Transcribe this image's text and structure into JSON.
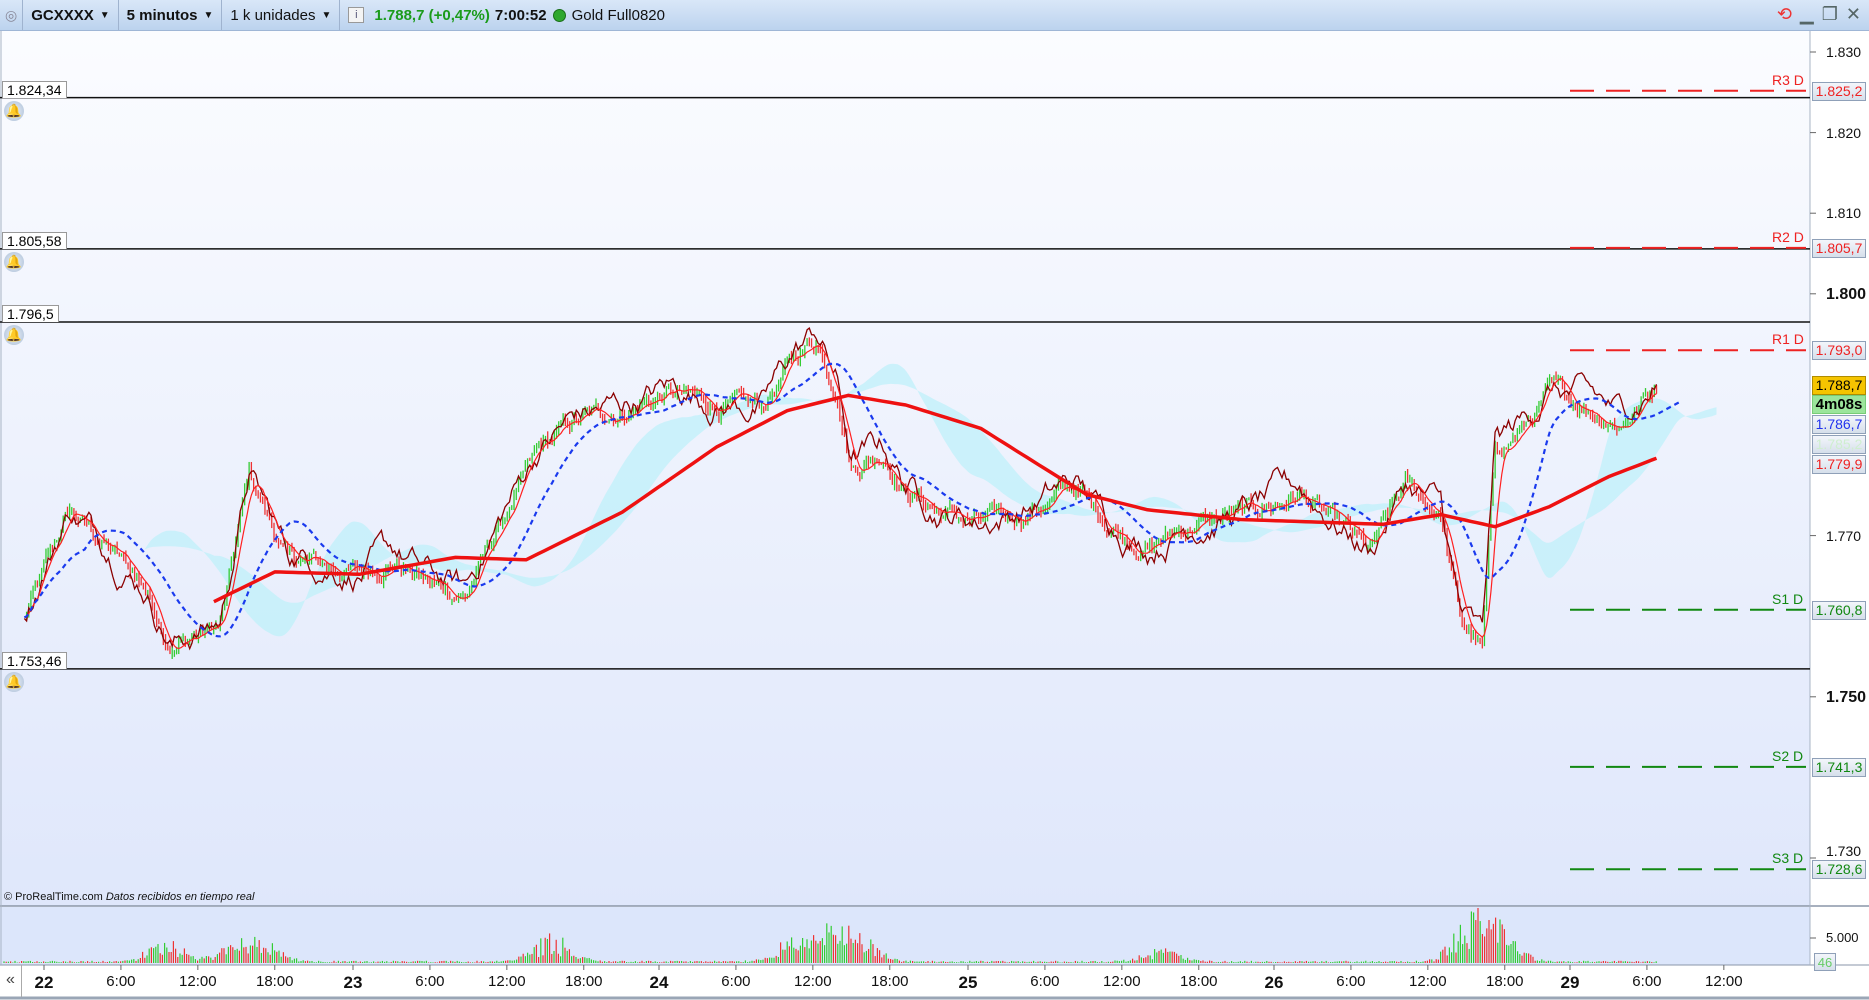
{
  "header": {
    "symbol": "GCXXXX",
    "timeframe": "5 minutos",
    "units": "1 k unidades",
    "last_price": "1.788,7 (+0,47%)",
    "time": "7:00:52",
    "instrument": "Gold Full0820"
  },
  "icons": [
    "logo-icon",
    "chevron-down-icon",
    "info-icon",
    "status-dot-icon",
    "refresh-icon",
    "minimize-icon",
    "restore-icon",
    "close-icon",
    "bell-icon",
    "scroll-left-icon"
  ],
  "colors": {
    "up": "#33cc33",
    "down": "#ee3333",
    "price_line": "#8b0000",
    "ma_long": "#ee1111",
    "ma_short": "#1a3aee",
    "cloud": "#bff0fa",
    "pivot_r": "#ee2222",
    "pivot_s": "#118811",
    "last_price_bg": "#f5c400",
    "timer_bg": "#9be59b"
  },
  "levels": [
    {
      "value": 1824.34,
      "label": "1.824,34"
    },
    {
      "value": 1805.58,
      "label": "1.805,58"
    },
    {
      "value": 1796.5,
      "label": "1.796,5"
    },
    {
      "value": 1753.46,
      "label": "1.753,46"
    }
  ],
  "pivots": [
    {
      "name": "R3 D",
      "value": 1825.2,
      "label": "1.825,2",
      "type": "r"
    },
    {
      "name": "R2 D",
      "value": 1805.7,
      "label": "1.805,7",
      "type": "r"
    },
    {
      "name": "R1 D",
      "value": 1793.0,
      "label": "1.793,0",
      "type": "r"
    },
    {
      "name": "S1 D",
      "value": 1760.8,
      "label": "1.760,8",
      "type": "s"
    },
    {
      "name": "S2 D",
      "value": 1741.3,
      "label": "1.741,3",
      "type": "s"
    },
    {
      "name": "S3 D",
      "value": 1728.6,
      "label": "1.728,6",
      "type": "s"
    }
  ],
  "axis_labels": {
    "last": {
      "value": 1788.7,
      "label": "1.788,7"
    },
    "timer": "4m08s",
    "ma_short": {
      "value": 1786.7,
      "label": "1.786,7"
    },
    "cloud": {
      "value": 1785.2,
      "label": "1.785,2"
    },
    "ma_long": {
      "value": 1779.9,
      "label": "1.779,9"
    }
  },
  "credit": {
    "site": "© ProRealTime.com",
    "note": "Datos recibidos en tiempo real"
  },
  "chart_data": {
    "type": "line",
    "y_ticks": [
      {
        "v": 1830,
        "l": "1.830"
      },
      {
        "v": 1820,
        "l": "1.820"
      },
      {
        "v": 1810,
        "l": "1.810"
      },
      {
        "v": 1800,
        "l": "1.800",
        "bold": true
      },
      {
        "v": 1770,
        "l": "1.770"
      },
      {
        "v": 1750,
        "l": "1.750",
        "bold": true
      },
      {
        "v": 1730,
        "l": "1.730"
      }
    ],
    "x_ticks": [
      {
        "t": "22 00:00",
        "l": "22",
        "day": true
      },
      {
        "t": "22 06:00",
        "l": "6:00"
      },
      {
        "t": "22 12:00",
        "l": "12:00"
      },
      {
        "t": "22 18:00",
        "l": "18:00"
      },
      {
        "t": "23 00:00",
        "l": "23",
        "day": true
      },
      {
        "t": "23 06:00",
        "l": "6:00"
      },
      {
        "t": "23 12:00",
        "l": "12:00"
      },
      {
        "t": "23 18:00",
        "l": "18:00"
      },
      {
        "t": "24 00:00",
        "l": "24",
        "day": true
      },
      {
        "t": "24 06:00",
        "l": "6:00"
      },
      {
        "t": "24 12:00",
        "l": "12:00"
      },
      {
        "t": "24 18:00",
        "l": "18:00"
      },
      {
        "t": "25 00:00",
        "l": "25",
        "day": true
      },
      {
        "t": "25 06:00",
        "l": "6:00"
      },
      {
        "t": "25 12:00",
        "l": "12:00"
      },
      {
        "t": "25 18:00",
        "l": "18:00"
      },
      {
        "t": "26 00:00",
        "l": "26",
        "day": true
      },
      {
        "t": "26 06:00",
        "l": "6:00"
      },
      {
        "t": "26 12:00",
        "l": "12:00"
      },
      {
        "t": "26 18:00",
        "l": "18:00"
      },
      {
        "t": "29 00:00",
        "l": "29",
        "day": true
      },
      {
        "t": "29 06:00",
        "l": "6:00"
      },
      {
        "t": "29 12:00",
        "l": "12:00"
      }
    ],
    "price": [
      [
        "21 22:30",
        1759.6
      ],
      [
        "22 02:00",
        1772.9
      ],
      [
        "22 04:00",
        1770
      ],
      [
        "22 07:45",
        1764
      ],
      [
        "22 10:00",
        1756.6
      ],
      [
        "22 13:45",
        1758.8
      ],
      [
        "22 16:00",
        1777.3
      ],
      [
        "22 19:00",
        1767
      ],
      [
        "23 00:30",
        1765.5
      ],
      [
        "23 03:15",
        1767
      ],
      [
        "23 06:00",
        1764
      ],
      [
        "23 08:45",
        1762.5
      ],
      [
        "23 11:30",
        1771.4
      ],
      [
        "23 14:30",
        1780.3
      ],
      [
        "23 17:15",
        1784
      ],
      [
        "23 21:00",
        1785.5
      ],
      [
        "24 00:45",
        1787.7
      ],
      [
        "24 04:30",
        1786.2
      ],
      [
        "24 08:00",
        1785.5
      ],
      [
        "24 10:30",
        1792
      ],
      [
        "24 12:15",
        1794.4
      ],
      [
        "24 13:45",
        1789.2
      ],
      [
        "24 15:00",
        1778.8
      ],
      [
        "24 17:30",
        1780.3
      ],
      [
        "24 19:15",
        1775.9
      ],
      [
        "24 22:00",
        1772.9
      ],
      [
        "25 01:00",
        1771.4
      ],
      [
        "25 04:30",
        1772.9
      ],
      [
        "25 08:15",
        1775.9
      ],
      [
        "25 11:00",
        1771.4
      ],
      [
        "25 14:00",
        1768.5
      ],
      [
        "25 17:30",
        1771.4
      ],
      [
        "25 22:15",
        1772.9
      ],
      [
        "26 02:00",
        1775.1
      ],
      [
        "26 04:45",
        1771.4
      ],
      [
        "26 07:30",
        1767.7
      ],
      [
        "26 10:15",
        1775.9
      ],
      [
        "26 13:00",
        1772.9
      ],
      [
        "26 14:30",
        1759.6
      ],
      [
        "26 16:15",
        1755.9
      ],
      [
        "26 17:15",
        1780.3
      ],
      [
        "26 19:30",
        1783.3
      ],
      [
        "26 21:30",
        1787.7
      ],
      [
        "29 01:15",
        1786.2
      ],
      [
        "29 04:00",
        1784
      ],
      [
        "29 06:45",
        1788.7
      ]
    ],
    "ma_long": [
      [
        "22 13:15",
        1761.8
      ],
      [
        "22 18:00",
        1765.5
      ],
      [
        "23 00:30",
        1765.2
      ],
      [
        "23 08:00",
        1767.3
      ],
      [
        "23 13:30",
        1767
      ],
      [
        "23 21:00",
        1772.9
      ],
      [
        "24 04:30",
        1781
      ],
      [
        "24 10:00",
        1785.5
      ],
      [
        "24 14:45",
        1787.4
      ],
      [
        "24 19:15",
        1786.2
      ],
      [
        "25 01:00",
        1783.3
      ],
      [
        "25 05:30",
        1778.8
      ],
      [
        "25 09:15",
        1775.1
      ],
      [
        "25 14:00",
        1773.2
      ],
      [
        "25 21:15",
        1772
      ],
      [
        "26 08:30",
        1771.4
      ],
      [
        "26 13:00",
        1772.6
      ],
      [
        "26 17:15",
        1771.1
      ],
      [
        "26 21:30",
        1773.6
      ],
      [
        "29 03:00",
        1777.3
      ],
      [
        "29 06:45",
        1779.6
      ]
    ],
    "volume_peaks": [
      [
        "22 09:30",
        4500
      ],
      [
        "22 15:00",
        3500
      ],
      [
        "22 17:00",
        4000
      ],
      [
        "23 15:30",
        6000
      ],
      [
        "24 10:30",
        5000
      ],
      [
        "24 13:30",
        8000
      ],
      [
        "24 16:00",
        4000
      ],
      [
        "25 15:00",
        3000
      ],
      [
        "26 15:30",
        10000
      ],
      [
        "26 17:30",
        7500
      ]
    ],
    "volume_axis": {
      "tick": 5000,
      "tick_label": "5.000",
      "current": "46"
    }
  }
}
